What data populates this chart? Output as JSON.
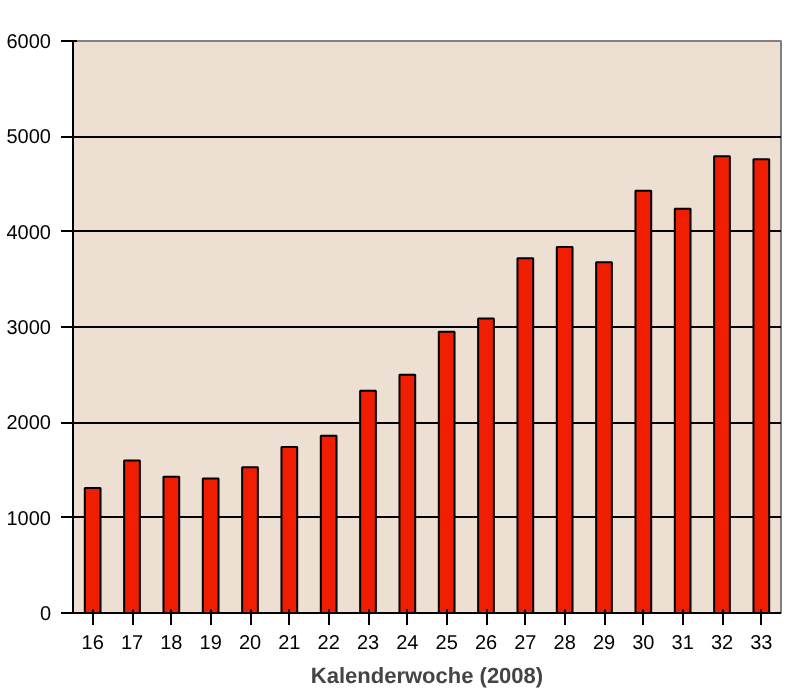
{
  "chart_data": {
    "type": "bar",
    "xlabel": "Kalenderwoche (2008)",
    "categories": [
      "16",
      "17",
      "18",
      "19",
      "20",
      "21",
      "22",
      "23",
      "24",
      "25",
      "26",
      "27",
      "28",
      "29",
      "30",
      "31",
      "32",
      "33"
    ],
    "values": [
      1310,
      1600,
      1430,
      1410,
      1530,
      1740,
      1860,
      2330,
      2500,
      2950,
      3090,
      3720,
      3840,
      3680,
      4430,
      4240,
      4790,
      4760
    ],
    "color": "#f01e00",
    "ylim": [
      0,
      6000
    ],
    "yticks": [
      0,
      1000,
      2000,
      3000,
      4000,
      5000,
      6000
    ],
    "grid": "y"
  }
}
